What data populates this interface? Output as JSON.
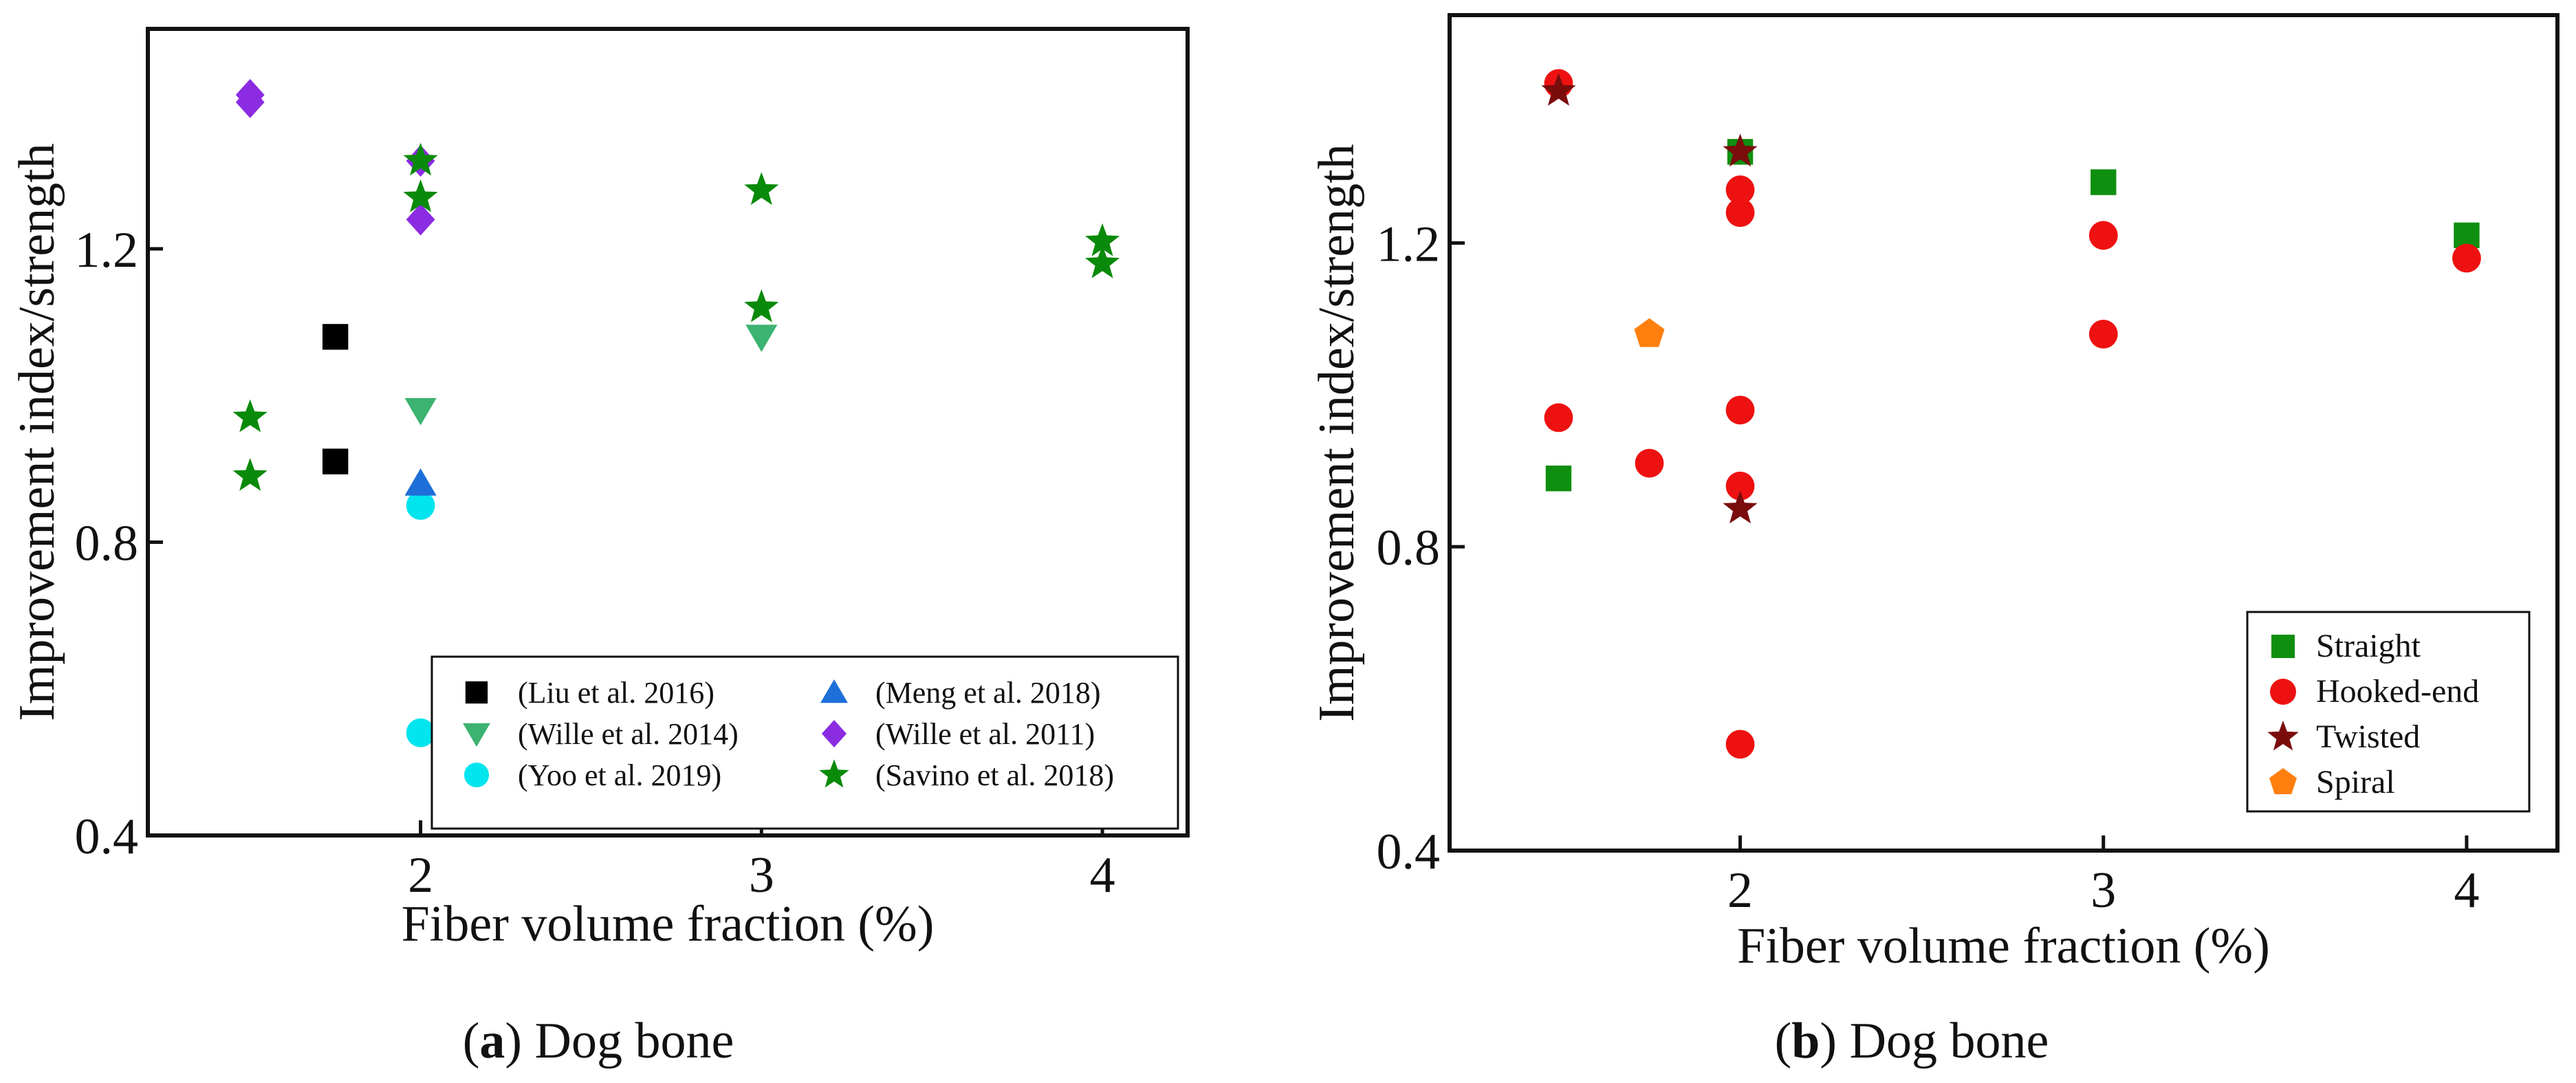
{
  "chart_data": [
    {
      "panel": "a",
      "type": "scatter",
      "xlabel": "Fiber volume fraction (%)",
      "ylabel": "Improvement index/strength",
      "xlim": [
        1.2,
        4.25
      ],
      "ylim": [
        0.4,
        1.5
      ],
      "xticks": [
        2,
        3,
        4
      ],
      "xtick_labels": [
        "2",
        "3",
        "4"
      ],
      "yticks": [
        0.4,
        0.8,
        1.2
      ],
      "ytick_labels": [
        "0.4",
        "0.8",
        "1.2"
      ],
      "caption_letter": "a",
      "caption_text": " Dog bone",
      "legend": {
        "placement": "bottom-right",
        "columns": 2
      },
      "series": [
        {
          "name": "(Liu et al. 2016)",
          "marker": "square",
          "color": "#000000",
          "points": [
            [
              1.75,
              1.08
            ],
            [
              1.75,
              0.91
            ]
          ]
        },
        {
          "name": "(Wille et al. 2014)",
          "marker": "triangle-down",
          "color": "#3cb371",
          "points": [
            [
              2.0,
              0.98
            ],
            [
              3.0,
              1.08
            ]
          ]
        },
        {
          "name": "(Yoo et al. 2019)",
          "marker": "circle",
          "color": "#00e5ee",
          "points": [
            [
              2.0,
              0.85
            ],
            [
              2.0,
              0.54
            ]
          ]
        },
        {
          "name": "(Meng et al. 2018)",
          "marker": "triangle-up",
          "color": "#1e6fd9",
          "points": [
            [
              2.0,
              0.88
            ]
          ]
        },
        {
          "name": "(Wille et al. 2011)",
          "marker": "diamond",
          "color": "#8b2be2",
          "points": [
            [
              1.5,
              1.41
            ],
            [
              1.5,
              1.4
            ],
            [
              2.0,
              1.32
            ],
            [
              2.0,
              1.24
            ]
          ]
        },
        {
          "name": "(Savino et al. 2018)",
          "marker": "star",
          "color": "#0a8a0a",
          "points": [
            [
              1.5,
              0.97
            ],
            [
              1.5,
              0.89
            ],
            [
              2.0,
              1.32
            ],
            [
              2.0,
              1.27
            ],
            [
              3.0,
              1.28
            ],
            [
              3.0,
              1.12
            ],
            [
              4.0,
              1.21
            ],
            [
              4.0,
              1.18
            ]
          ]
        }
      ]
    },
    {
      "panel": "b",
      "type": "scatter",
      "xlabel": "Fiber volume fraction (%)",
      "ylabel": "Improvement index/strength",
      "xlim": [
        1.2,
        4.25
      ],
      "ylim": [
        0.4,
        1.5
      ],
      "xticks": [
        2,
        3,
        4
      ],
      "xtick_labels": [
        "2",
        "3",
        "4"
      ],
      "yticks": [
        0.4,
        0.8,
        1.2
      ],
      "ytick_labels": [
        "0.4",
        "0.8",
        "1.2"
      ],
      "caption_letter": "b",
      "caption_text": " Dog bone",
      "legend": {
        "placement": "bottom-right",
        "columns": 1
      },
      "series": [
        {
          "name": "Straight",
          "marker": "square",
          "color": "#0f8f0f",
          "points": [
            [
              1.5,
              0.89
            ],
            [
              2.0,
              1.32
            ],
            [
              3.0,
              1.28
            ],
            [
              4.0,
              1.21
            ]
          ]
        },
        {
          "name": "Hooked-end",
          "marker": "circle",
          "color": "#ee1111",
          "points": [
            [
              1.5,
              1.41
            ],
            [
              1.5,
              0.97
            ],
            [
              1.75,
              0.91
            ],
            [
              2.0,
              1.27
            ],
            [
              2.0,
              1.24
            ],
            [
              2.0,
              0.98
            ],
            [
              2.0,
              0.88
            ],
            [
              2.0,
              0.54
            ],
            [
              3.0,
              1.21
            ],
            [
              3.0,
              1.08
            ],
            [
              4.0,
              1.18
            ]
          ]
        },
        {
          "name": "Twisted",
          "marker": "star",
          "color": "#7a0c0c",
          "points": [
            [
              1.5,
              1.4
            ],
            [
              2.0,
              1.32
            ],
            [
              2.0,
              0.85
            ]
          ]
        },
        {
          "name": "Spiral",
          "marker": "pentagon",
          "color": "#ff7f0e",
          "points": [
            [
              1.75,
              1.08
            ]
          ]
        }
      ]
    }
  ]
}
